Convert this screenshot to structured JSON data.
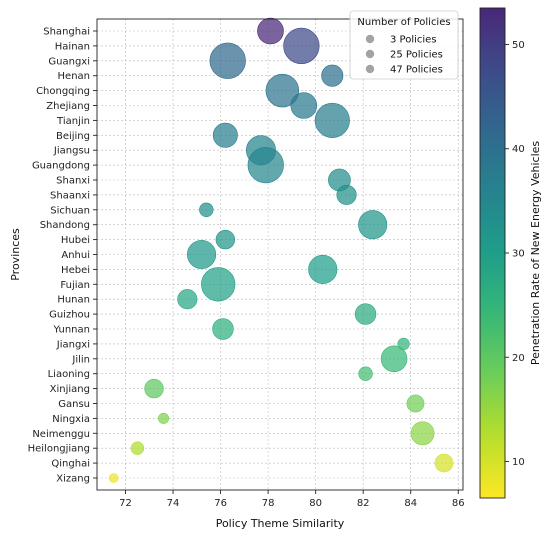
{
  "chart_data": {
    "type": "scatter",
    "title": "",
    "xlabel": "Policy Theme Similarity",
    "ylabel": "Provinces",
    "xlim": [
      70.8,
      86.2
    ],
    "xticks": [
      72,
      74,
      76,
      78,
      80,
      82,
      84,
      86
    ],
    "grid": true,
    "legend": {
      "title": "Number of Policies",
      "placement": "top-right",
      "entries": [
        {
          "label": "3 Policies",
          "size": 3
        },
        {
          "label": "25 Policies",
          "size": 25
        },
        {
          "label": "47 Policies",
          "size": 47
        }
      ]
    },
    "colorbar": {
      "label": "Penetration Rate of New Energy Vehicles",
      "range": [
        6.5,
        53.5
      ],
      "ticks": [
        10,
        20,
        30,
        40,
        50
      ],
      "colormap": "viridis_r"
    },
    "points": [
      {
        "province": "Shanghai",
        "x": 78.1,
        "policies": 25,
        "rate": 53.5
      },
      {
        "province": "Hainan",
        "x": 79.4,
        "policies": 47,
        "rate": 48
      },
      {
        "province": "Guangxi",
        "x": 76.3,
        "policies": 47,
        "rate": 41
      },
      {
        "province": "Henan",
        "x": 80.7,
        "policies": 17,
        "rate": 40
      },
      {
        "province": "Chongqing",
        "x": 78.6,
        "policies": 40,
        "rate": 39
      },
      {
        "province": "Zhejiang",
        "x": 79.5,
        "policies": 25,
        "rate": 38
      },
      {
        "province": "Tianjin",
        "x": 80.7,
        "policies": 44,
        "rate": 37
      },
      {
        "province": "Beijing",
        "x": 76.2,
        "policies": 22,
        "rate": 37
      },
      {
        "province": "Jiangsu",
        "x": 77.7,
        "policies": 32,
        "rate": 36
      },
      {
        "province": "Guangdong",
        "x": 77.9,
        "policies": 47,
        "rate": 35
      },
      {
        "province": "Shanxi",
        "x": 81.0,
        "policies": 18,
        "rate": 34
      },
      {
        "province": "Shaanxi",
        "x": 81.3,
        "policies": 14,
        "rate": 33
      },
      {
        "province": "Sichuan",
        "x": 75.4,
        "policies": 7,
        "rate": 33
      },
      {
        "province": "Shandong",
        "x": 82.4,
        "policies": 30,
        "rate": 32
      },
      {
        "province": "Hubei",
        "x": 76.2,
        "policies": 13,
        "rate": 32
      },
      {
        "province": "Anhui",
        "x": 75.2,
        "policies": 30,
        "rate": 31
      },
      {
        "province": "Hebei",
        "x": 80.3,
        "policies": 30,
        "rate": 30
      },
      {
        "province": "Fujian",
        "x": 75.9,
        "policies": 42,
        "rate": 29
      },
      {
        "province": "Hunan",
        "x": 74.6,
        "policies": 14,
        "rate": 28
      },
      {
        "province": "Guizhou",
        "x": 82.1,
        "policies": 16,
        "rate": 27
      },
      {
        "province": "Yunnan",
        "x": 76.1,
        "policies": 16,
        "rate": 26
      },
      {
        "province": "Jiangxi",
        "x": 83.7,
        "policies": 5,
        "rate": 25
      },
      {
        "province": "Jilin",
        "x": 83.3,
        "policies": 25,
        "rate": 24
      },
      {
        "province": "Liaoning",
        "x": 82.1,
        "policies": 7,
        "rate": 23
      },
      {
        "province": "Xinjiang",
        "x": 73.2,
        "policies": 13,
        "rate": 20
      },
      {
        "province": "Gansu",
        "x": 84.2,
        "policies": 11,
        "rate": 18
      },
      {
        "province": "Ningxia",
        "x": 73.6,
        "policies": 4,
        "rate": 17
      },
      {
        "province": "Neimenggu",
        "x": 84.5,
        "policies": 20,
        "rate": 16
      },
      {
        "province": "Heilongjiang",
        "x": 72.5,
        "policies": 6,
        "rate": 13
      },
      {
        "province": "Qinghai",
        "x": 85.4,
        "policies": 12,
        "rate": 10
      },
      {
        "province": "Xizang",
        "x": 71.5,
        "policies": 3,
        "rate": 8
      }
    ]
  }
}
